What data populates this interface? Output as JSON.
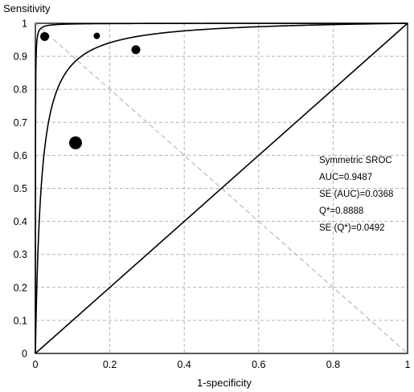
{
  "chart_data": {
    "type": "scatter",
    "title": "",
    "xlabel": "1-specificity",
    "ylabel": "Sensitivity",
    "xlim": [
      0,
      1
    ],
    "ylim": [
      0,
      1
    ],
    "xticks": [
      "0",
      "0.2",
      "0.4",
      "0.6",
      "0.8",
      "1"
    ],
    "yticks": [
      "0",
      "0.1",
      "0.2",
      "0.3",
      "0.4",
      "0.5",
      "0.6",
      "0.7",
      "0.8",
      "0.9",
      "1"
    ],
    "grid": true,
    "points": [
      {
        "x": 0.025,
        "y": 0.96,
        "size": "medium"
      },
      {
        "x": 0.165,
        "y": 0.962,
        "size": "small"
      },
      {
        "x": 0.27,
        "y": 0.92,
        "size": "medium"
      },
      {
        "x": 0.108,
        "y": 0.638,
        "size": "large"
      }
    ],
    "curves": [
      {
        "kind": "sroc",
        "q_star": 0.8888
      },
      {
        "kind": "sroc-upper",
        "q_star": 0.985
      },
      {
        "kind": "symmetry-line"
      },
      {
        "kind": "chance-diagonal"
      }
    ],
    "annotations": [
      "Symmetric SROC",
      "AUC=0.9487",
      "SE (AUC)=0.0368",
      "Q*=0.8888",
      "SE (Q*)=0.0492"
    ]
  },
  "colors": {
    "line": "#000000",
    "grid": "#b3b3b3",
    "symmetry": "#b3b3b3",
    "point": "#000000"
  }
}
